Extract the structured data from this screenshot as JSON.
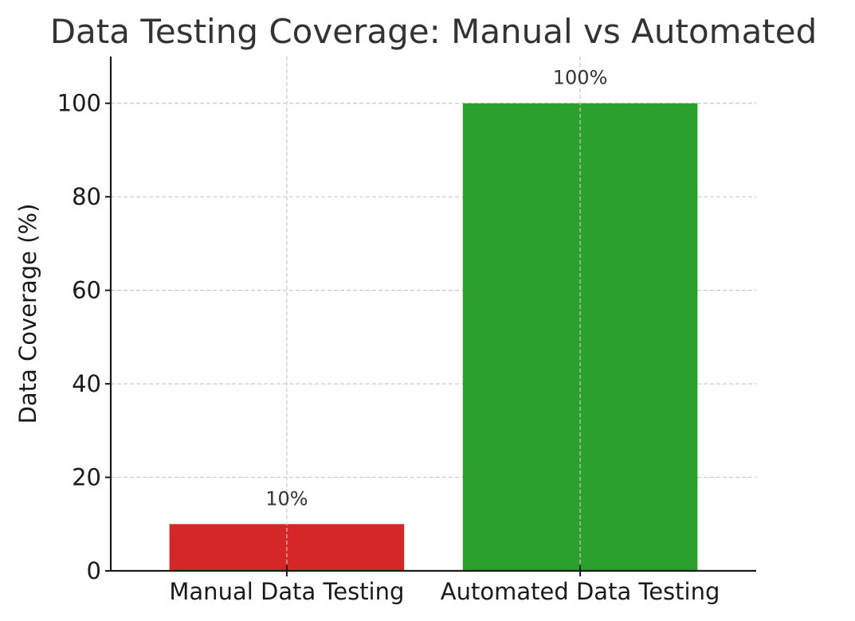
{
  "chart_data": {
    "type": "bar",
    "title": "Data Testing Coverage: Manual vs Automated",
    "xlabel": "",
    "ylabel": "Data Coverage (%)",
    "categories": [
      "Manual Data Testing",
      "Automated Data Testing"
    ],
    "values": [
      10,
      100
    ],
    "data_labels": [
      "10%",
      "100%"
    ],
    "colors": [
      "#d62728",
      "#2ca02c"
    ],
    "ylim": [
      0,
      110
    ],
    "yticks": [
      0,
      20,
      40,
      60,
      80,
      100
    ],
    "grid": true,
    "legend": "none"
  }
}
